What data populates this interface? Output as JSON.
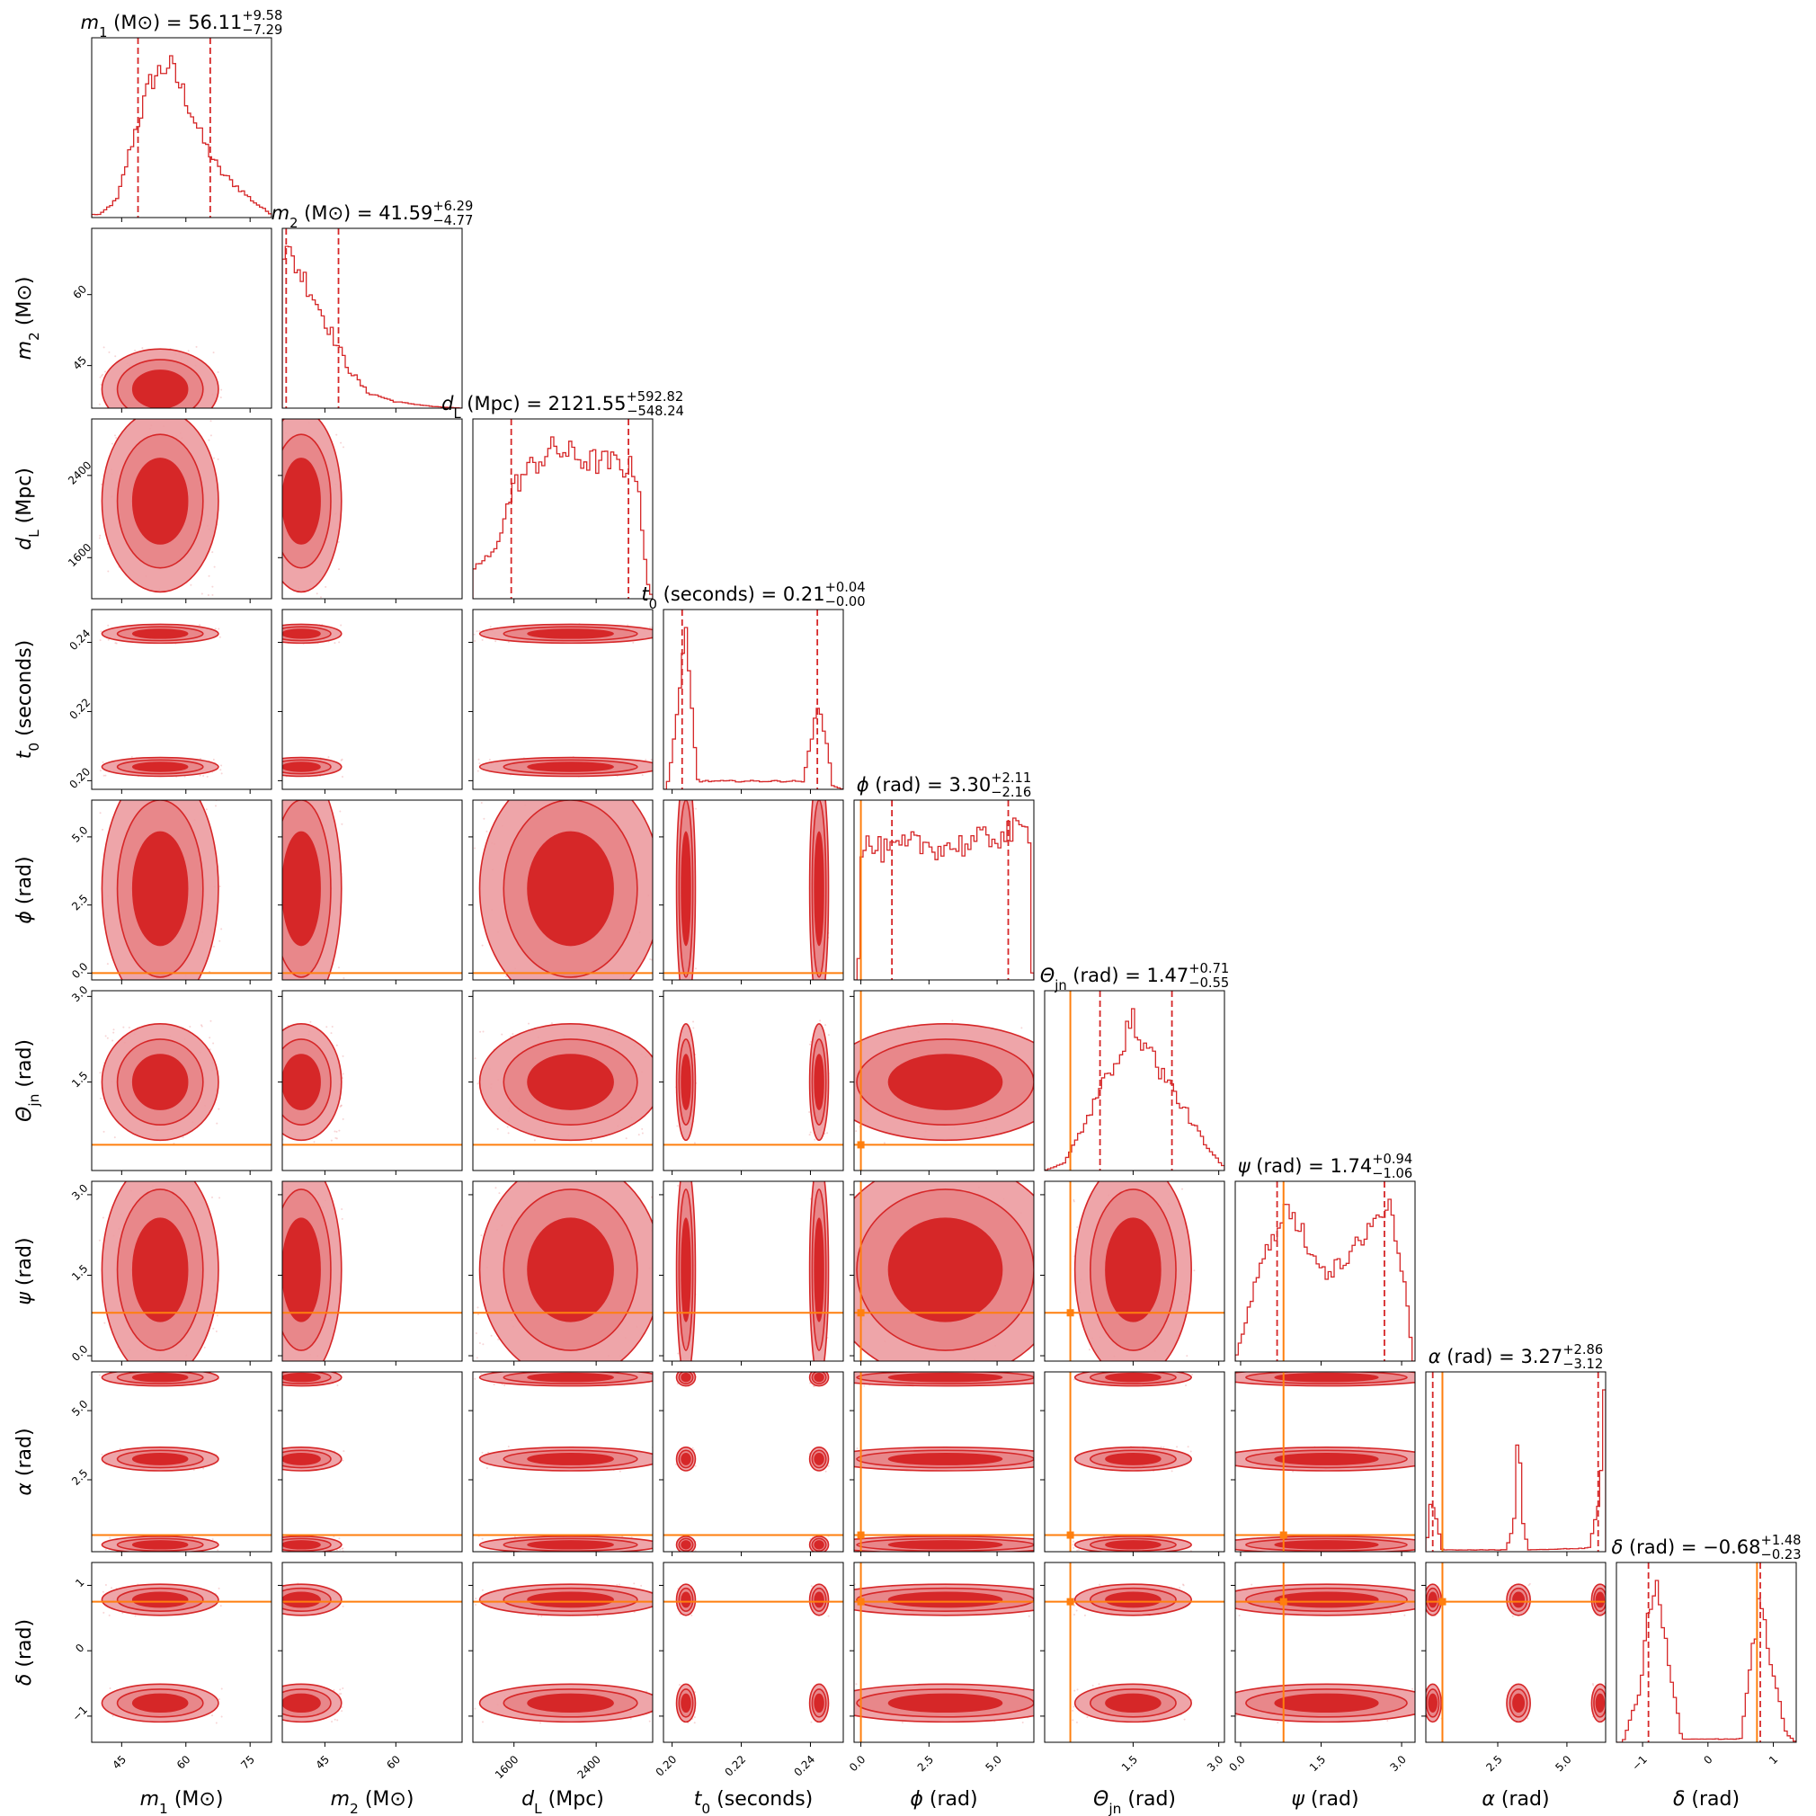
{
  "colors": {
    "posterior": "#d62728",
    "posterior_light": "#e8878a",
    "posterior_mid": "#ec9ba0",
    "truth": "#ff7f0e",
    "axis": "#000000"
  },
  "chart_data": {
    "type": "corner",
    "parameters": [
      {
        "key": "m1",
        "sym": "m",
        "sub": "1",
        "unit": "(M⊙)",
        "label": "m1 (M⊙)",
        "title": "m1 (M⊙) = 56.11 +9.58 −7.29",
        "value": "56.11",
        "plus": "+9.58",
        "minus": "−7.29",
        "range": [
          38,
          80
        ],
        "ticks": [
          45,
          60,
          75
        ],
        "ticklabels": [
          "45",
          "60",
          "75"
        ],
        "q_lo": 48.82,
        "q_hi": 65.69,
        "truth": null
      },
      {
        "key": "m2",
        "sym": "m",
        "sub": "2",
        "unit": "(M⊙)",
        "label": "m2 (M⊙)",
        "title": "m2 (M⊙) = 41.59 +6.29 −4.77",
        "value": "41.59",
        "plus": "+6.29",
        "minus": "−4.77",
        "range": [
          36,
          74
        ],
        "ticks": [
          45,
          60
        ],
        "ticklabels": [
          "45",
          "60"
        ],
        "q_lo": 36.82,
        "q_hi": 47.88,
        "truth": null
      },
      {
        "key": "dL",
        "sym": "d",
        "sub": "L",
        "unit": "(Mpc)",
        "label": "dL (Mpc)",
        "title": "dL (Mpc) = 2121.55 +592.82 −548.24",
        "value": "2121.55",
        "plus": "+592.82",
        "minus": "−548.24",
        "range": [
          1200,
          2950
        ],
        "ticks": [
          1600,
          2400
        ],
        "ticklabels": [
          "1600",
          "2400"
        ],
        "q_lo": 1573.31,
        "q_hi": 2714.37,
        "truth": null
      },
      {
        "key": "t0",
        "sym": "t",
        "sub": "0",
        "unit": "(seconds)",
        "label": "t0 (seconds)",
        "title": "t0 (seconds) = 0.21 +0.04 −0.00",
        "value": "0.21",
        "plus": "+0.04",
        "minus": "−0.00",
        "range": [
          0.1975,
          0.2495
        ],
        "ticks": [
          0.2,
          0.22,
          0.24
        ],
        "ticklabels": [
          "0.20",
          "0.22",
          "0.24"
        ],
        "q_lo": 0.2029,
        "q_hi": 0.242,
        "truth": null
      },
      {
        "key": "phi",
        "sym": "ϕ",
        "sub": "",
        "unit": "(rad)",
        "label": "ϕ (rad)",
        "title": "ϕ (rad) = 3.30 +2.11 −2.16",
        "value": "3.30",
        "plus": "+2.11",
        "minus": "−2.16",
        "range": [
          -0.25,
          6.35
        ],
        "ticks": [
          0.0,
          2.5,
          5.0
        ],
        "ticklabels": [
          "0.0",
          "2.5",
          "5.0"
        ],
        "q_lo": 1.14,
        "q_hi": 5.41,
        "truth": 0.0
      },
      {
        "key": "theta",
        "sym": "Θ",
        "sub": "jn",
        "unit": "(rad)",
        "label": "Θjn (rad)",
        "title": "Θjn (rad) = 1.47 +0.71 −0.55",
        "value": "1.47",
        "plus": "+0.71",
        "minus": "−0.55",
        "range": [
          -0.05,
          3.1
        ],
        "ticks": [
          1.5,
          3.0
        ],
        "ticklabels": [
          "1.5",
          "3.0"
        ],
        "q_lo": 0.92,
        "q_hi": 2.18,
        "truth": 0.4
      },
      {
        "key": "psi",
        "sym": "ψ",
        "sub": "",
        "unit": "(rad)",
        "label": "ψ (rad)",
        "title": "ψ (rad) = 1.74 +0.94 −1.06",
        "value": "1.74",
        "plus": "+0.94",
        "minus": "−1.06",
        "range": [
          -0.1,
          3.25
        ],
        "ticks": [
          0.0,
          1.5,
          3.0
        ],
        "ticklabels": [
          "0.0",
          "1.5",
          "3.0"
        ],
        "q_lo": 0.68,
        "q_hi": 2.68,
        "truth": 0.8
      },
      {
        "key": "alpha",
        "sym": "α",
        "sub": "",
        "unit": "(rad)",
        "label": "α (rad)",
        "title": "α (rad) = 3.27 +2.86 −3.12",
        "value": "3.27",
        "plus": "+2.86",
        "minus": "−3.12",
        "range": [
          -0.1,
          6.4
        ],
        "ticks": [
          2.5,
          5.0
        ],
        "ticklabels": [
          "2.5",
          "5.0"
        ],
        "q_lo": 0.15,
        "q_hi": 6.13,
        "truth": 0.5
      },
      {
        "key": "delta",
        "sym": "δ",
        "sub": "",
        "unit": "(rad)",
        "label": "δ (rad)",
        "title": "δ (rad) = −0.68 +1.48 −0.23",
        "value": "−0.68",
        "plus": "+1.48",
        "minus": "−0.23",
        "range": [
          -1.4,
          1.35
        ],
        "ticks": [
          -1,
          0,
          1
        ],
        "ticklabels": [
          "−1",
          "0",
          "1"
        ],
        "q_lo": -0.91,
        "q_hi": 0.8,
        "truth": 0.75
      }
    ],
    "histogram_shapes": {
      "m1": [
        [
          40,
          0.02
        ],
        [
          44,
          0.12
        ],
        [
          48,
          0.55
        ],
        [
          52,
          0.9
        ],
        [
          56,
          1.0
        ],
        [
          60,
          0.78
        ],
        [
          64,
          0.5
        ],
        [
          68,
          0.3
        ],
        [
          72,
          0.2
        ],
        [
          76,
          0.1
        ],
        [
          80,
          0.02
        ]
      ],
      "m2": [
        [
          36.5,
          1.0
        ],
        [
          39,
          0.9
        ],
        [
          42,
          0.75
        ],
        [
          46,
          0.5
        ],
        [
          50,
          0.25
        ],
        [
          54,
          0.1
        ],
        [
          60,
          0.04
        ],
        [
          68,
          0.01
        ],
        [
          74,
          0.0
        ]
      ],
      "dL": [
        [
          1200,
          0.2
        ],
        [
          1400,
          0.3
        ],
        [
          1600,
          0.75
        ],
        [
          1800,
          0.9
        ],
        [
          2000,
          1.0
        ],
        [
          2300,
          0.92
        ],
        [
          2600,
          0.9
        ],
        [
          2800,
          0.85
        ],
        [
          2900,
          0.1
        ],
        [
          2950,
          0.0
        ]
      ],
      "t0": [
        [
          0.1985,
          0.0
        ],
        [
          0.2025,
          0.6
        ],
        [
          0.2038,
          1.0
        ],
        [
          0.2052,
          0.6
        ],
        [
          0.2075,
          0.05
        ],
        [
          0.238,
          0.05
        ],
        [
          0.2412,
          0.4
        ],
        [
          0.2425,
          0.58
        ],
        [
          0.2438,
          0.4
        ],
        [
          0.2465,
          0.02
        ],
        [
          0.2495,
          0.0
        ]
      ],
      "phi": [
        [
          -0.1,
          0.0
        ],
        [
          0.0,
          0.8
        ],
        [
          1.0,
          0.75
        ],
        [
          2.0,
          0.8
        ],
        [
          3.0,
          0.78
        ],
        [
          4.0,
          0.8
        ],
        [
          5.0,
          0.85
        ],
        [
          6.2,
          0.88
        ],
        [
          6.3,
          0.0
        ]
      ],
      "theta": [
        [
          -0.05,
          0.0
        ],
        [
          0.3,
          0.05
        ],
        [
          0.7,
          0.35
        ],
        [
          1.0,
          0.6
        ],
        [
          1.3,
          0.85
        ],
        [
          1.5,
          1.0
        ],
        [
          1.8,
          0.8
        ],
        [
          2.1,
          0.6
        ],
        [
          2.5,
          0.35
        ],
        [
          2.8,
          0.15
        ],
        [
          3.1,
          0.02
        ]
      ],
      "psi": [
        [
          -0.1,
          0.0
        ],
        [
          0.3,
          0.5
        ],
        [
          0.8,
          0.95
        ],
        [
          1.2,
          0.75
        ],
        [
          1.6,
          0.55
        ],
        [
          2.0,
          0.6
        ],
        [
          2.4,
          0.85
        ],
        [
          2.8,
          0.95
        ],
        [
          3.1,
          0.4
        ],
        [
          3.2,
          0.0
        ]
      ],
      "alpha": [
        [
          -0.1,
          0.0
        ],
        [
          0.1,
          0.3
        ],
        [
          0.5,
          0.01
        ],
        [
          2.8,
          0.01
        ],
        [
          3.15,
          0.2
        ],
        [
          3.25,
          1.0
        ],
        [
          3.35,
          0.2
        ],
        [
          3.6,
          0.01
        ],
        [
          5.8,
          0.02
        ],
        [
          6.2,
          0.3
        ],
        [
          6.35,
          0.9
        ],
        [
          6.4,
          0.0
        ]
      ],
      "delta": [
        [
          -1.3,
          0.0
        ],
        [
          -1.05,
          0.3
        ],
        [
          -0.9,
          0.8
        ],
        [
          -0.8,
          1.0
        ],
        [
          -0.6,
          0.5
        ],
        [
          -0.4,
          0.02
        ],
        [
          0.5,
          0.02
        ],
        [
          0.7,
          0.6
        ],
        [
          0.8,
          0.95
        ],
        [
          0.95,
          0.5
        ],
        [
          1.2,
          0.05
        ],
        [
          1.35,
          0.0
        ]
      ]
    },
    "grid": false,
    "legend": "none"
  }
}
